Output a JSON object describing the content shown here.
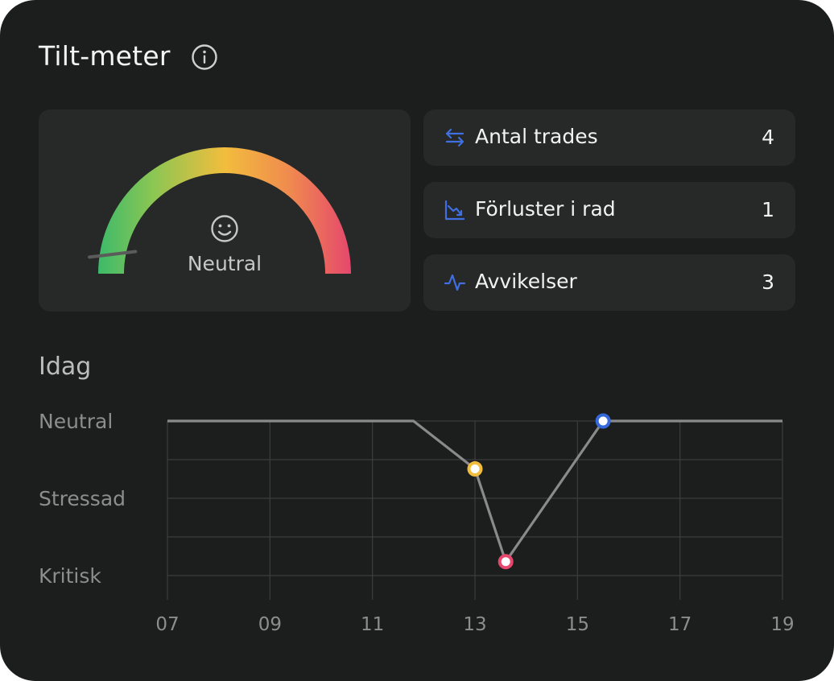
{
  "header": {
    "title": "Tilt-meter",
    "info_icon": "info-circle-icon"
  },
  "gauge": {
    "state_label": "Neutral",
    "face_icon": "smiley-face-icon",
    "colors": {
      "low": "#3dba6a",
      "mid": "#f2bd3d",
      "high": "#e5476d"
    },
    "needle_level": 0.05
  },
  "stats": [
    {
      "icon": "swap-arrows-icon",
      "label": "Antal trades",
      "value": "4"
    },
    {
      "icon": "trending-down-chart-icon",
      "label": "Förluster i rad",
      "value": "1"
    },
    {
      "icon": "activity-pulse-icon",
      "label": "Avvikelser",
      "value": "3"
    }
  ],
  "today": {
    "title": "Idag",
    "chart_data": {
      "type": "line",
      "title": "",
      "y_categories": [
        "Neutral",
        "Stressad",
        "Kritisk"
      ],
      "x_ticks": [
        "07",
        "09",
        "11",
        "13",
        "15",
        "17",
        "19"
      ],
      "xlim": [
        7,
        19
      ],
      "series": [
        {
          "points": [
            {
              "x": 7.0,
              "y": 0
            },
            {
              "x": 11.8,
              "y": 0
            },
            {
              "x": 13.0,
              "y": 0.62
            },
            {
              "x": 13.6,
              "y": 1.82
            },
            {
              "x": 15.5,
              "y": 0
            },
            {
              "x": 19.0,
              "y": 0
            }
          ],
          "markers": [
            {
              "x": 13.0,
              "y": 0.62,
              "color": "#f2bd3d"
            },
            {
              "x": 13.6,
              "y": 1.82,
              "color": "#e5476d"
            },
            {
              "x": 15.5,
              "y": 0,
              "color": "#3568d8"
            }
          ]
        }
      ]
    }
  }
}
